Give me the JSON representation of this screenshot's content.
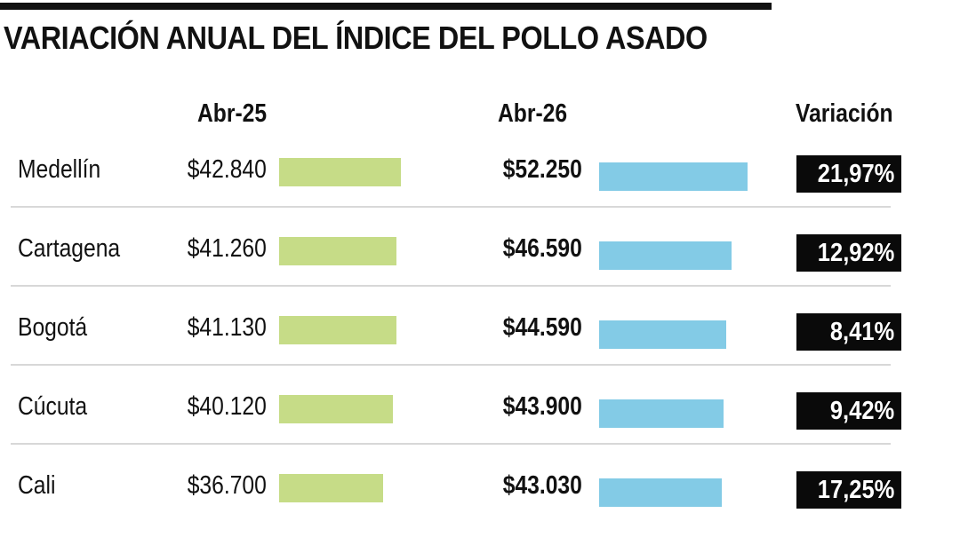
{
  "title": "VARIACIÓN ANUAL DEL ÍNDICE DEL POLLO ASADO",
  "columns": {
    "a": "Abr-25",
    "b": "Abr-26",
    "variation": "Variación"
  },
  "colors": {
    "abr25": "#c6dc87",
    "abr26": "#83cbe6",
    "variation_bg": "#0a0a0a"
  },
  "chart_data": {
    "type": "bar",
    "categories": [
      "Medellín",
      "Cartagena",
      "Bogotá",
      "Cúcuta",
      "Cali"
    ],
    "series": [
      {
        "name": "Abr-25",
        "values": [
          42840,
          41260,
          41130,
          40120,
          36700
        ],
        "labels": [
          "$42.840",
          "$41.260",
          "$41.130",
          "$40.120",
          "$36.700"
        ]
      },
      {
        "name": "Abr-26",
        "values": [
          52250,
          46590,
          44590,
          43900,
          43030
        ],
        "labels": [
          "$52.250",
          "$46.590",
          "$44.590",
          "$43.900",
          "$43.030"
        ]
      }
    ],
    "variation": [
      "21,97%",
      "12,92%",
      "8,41%",
      "9,42%",
      "17,25%"
    ]
  }
}
